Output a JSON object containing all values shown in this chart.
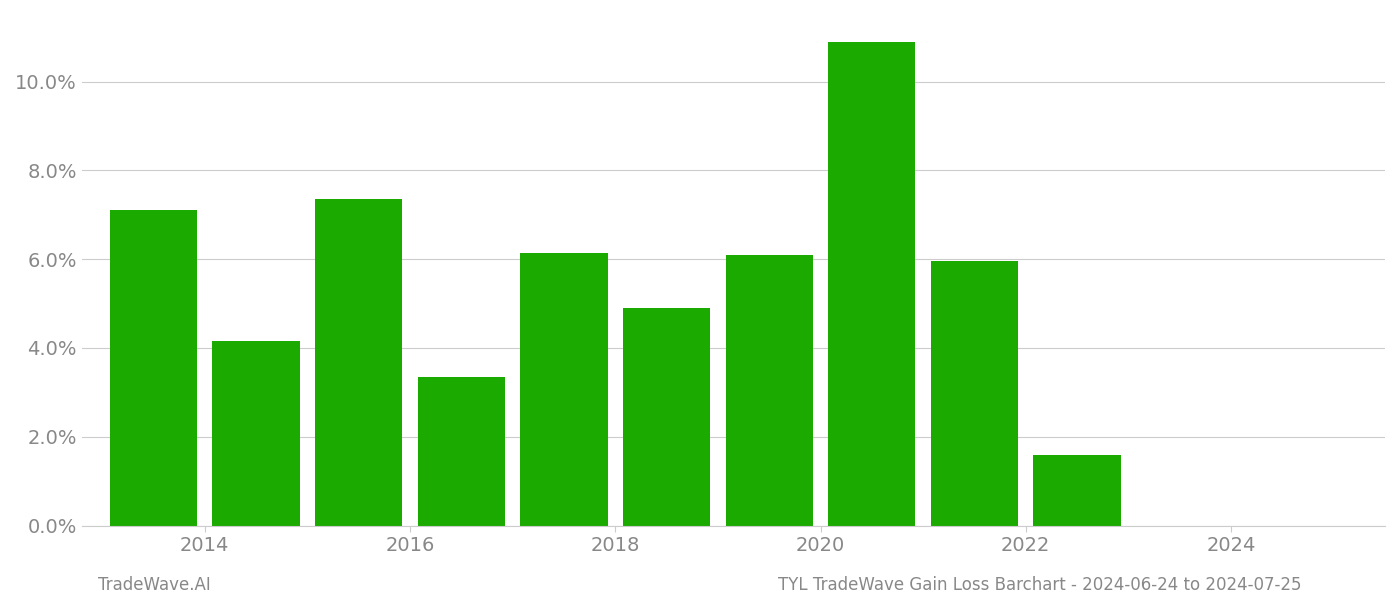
{
  "years": [
    2013,
    2014,
    2015,
    2016,
    2017,
    2018,
    2019,
    2020,
    2021,
    2022,
    2023
  ],
  "values": [
    0.071,
    0.0415,
    0.0735,
    0.0335,
    0.0615,
    0.049,
    0.061,
    0.109,
    0.0595,
    0.0158,
    0.0
  ],
  "bar_color": "#1aaa00",
  "title_left": "TradeWave.AI",
  "title_right": "TYL TradeWave Gain Loss Barchart - 2024-06-24 to 2024-07-25",
  "ylim": [
    0,
    0.115
  ],
  "yticks": [
    0.0,
    0.02,
    0.04,
    0.06,
    0.08,
    0.1
  ],
  "xticks": [
    2013.5,
    2015.5,
    2017.5,
    2019.5,
    2021.5,
    2023.5
  ],
  "xticklabels": [
    "2014",
    "2016",
    "2018",
    "2020",
    "2022",
    "2024"
  ],
  "xlim": [
    2012.3,
    2025.0
  ],
  "background_color": "#ffffff",
  "grid_color": "#cccccc",
  "tick_label_color": "#888888",
  "footer_color": "#888888",
  "bar_width": 0.85,
  "footer_fontsize": 12,
  "tick_fontsize": 14
}
